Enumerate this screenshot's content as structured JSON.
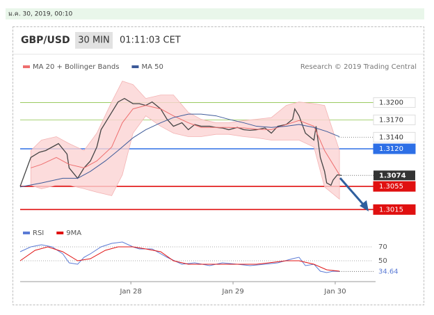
{
  "timestamp": "ม.ค. 30, 2019, 00:10",
  "chart_data": [
    {
      "type": "line",
      "title": "GBP/USD",
      "interval": "30 MIN",
      "time": "01:11:03 CET",
      "credit": "Research © 2019 Trading Central",
      "xlim": [
        -52,
        113
      ],
      "ylim": [
        1.2995,
        1.3245
      ],
      "xticks": [
        {
          "value": 0,
          "label": "Jan 28"
        },
        {
          "value": 48,
          "label": "Jan 29"
        },
        {
          "value": 96,
          "label": "Jan 30"
        }
      ],
      "series": [
        {
          "color": "#444444",
          "x": [
            -52,
            -47,
            -43,
            -40,
            -37,
            -34,
            -30,
            -29,
            -25,
            -22,
            -19,
            -16,
            -14,
            -12,
            -9,
            -6,
            -3,
            1,
            4,
            7,
            10,
            14,
            17,
            20,
            24,
            27,
            30,
            33,
            37,
            40,
            43,
            46,
            50,
            53,
            56,
            59,
            63,
            66,
            69,
            73,
            76,
            77,
            79,
            82,
            86,
            87,
            89,
            91,
            92,
            94,
            95,
            97,
            99
          ],
          "values": [
            1.3055,
            1.3105,
            1.3114,
            1.3117,
            1.3123,
            1.3129,
            1.3111,
            1.3087,
            1.3069,
            1.3087,
            1.3099,
            1.3123,
            1.3153,
            1.3165,
            1.3183,
            1.3201,
            1.3207,
            1.3198,
            1.3198,
            1.3195,
            1.3201,
            1.3189,
            1.3171,
            1.3159,
            1.3165,
            1.3153,
            1.3162,
            1.3159,
            1.3159,
            1.3157,
            1.3156,
            1.3153,
            1.3157,
            1.3153,
            1.3152,
            1.3153,
            1.3156,
            1.3147,
            1.3159,
            1.3162,
            1.3171,
            1.3189,
            1.3177,
            1.3147,
            1.3135,
            1.3159,
            1.3105,
            1.3081,
            1.3061,
            1.3057,
            1.3066,
            1.3075,
            1.3074
          ]
        },
        {
          "name": "MA 20 + Bollinger Bands",
          "color": "#ee6e6e",
          "band_color": "#fbd3d3",
          "x": [
            -47,
            -42,
            -35,
            -29,
            -22,
            -16,
            -9,
            -4,
            1,
            7,
            14,
            20,
            27,
            33,
            40,
            46,
            53,
            59,
            66,
            73,
            79,
            86,
            91,
            98
          ],
          "values": [
            1.3087,
            1.3093,
            1.3105,
            1.3093,
            1.3087,
            1.3099,
            1.3123,
            1.3165,
            1.3189,
            1.3195,
            1.3189,
            1.3177,
            1.3165,
            1.3157,
            1.3157,
            1.3157,
            1.3156,
            1.3154,
            1.3153,
            1.3162,
            1.3169,
            1.3159,
            1.3117,
            1.3075
          ],
          "upper": [
            1.3117,
            1.3135,
            1.3141,
            1.3129,
            1.3117,
            1.3147,
            1.3201,
            1.3237,
            1.3231,
            1.3207,
            1.3213,
            1.3213,
            1.3183,
            1.3171,
            1.3165,
            1.3165,
            1.3169,
            1.3171,
            1.3174,
            1.3195,
            1.3201,
            1.3198,
            1.3195,
            1.3117
          ],
          "lower": [
            1.3057,
            1.3051,
            1.3057,
            1.3057,
            1.3051,
            1.3045,
            1.3039,
            1.3075,
            1.3147,
            1.3177,
            1.3159,
            1.3147,
            1.3141,
            1.3141,
            1.3145,
            1.3145,
            1.3141,
            1.3139,
            1.3135,
            1.3135,
            1.3135,
            1.3123,
            1.3054,
            1.3033
          ]
        },
        {
          "name": "MA 50",
          "color": "#3d5a99",
          "x": [
            -52,
            -42,
            -32,
            -25,
            -19,
            -12,
            -6,
            1,
            7,
            14,
            20,
            27,
            33,
            40,
            46,
            53,
            59,
            66,
            73,
            79,
            86,
            92,
            98
          ],
          "values": [
            1.3054,
            1.3061,
            1.3069,
            1.3069,
            1.3081,
            1.3099,
            1.3117,
            1.3139,
            1.3153,
            1.3165,
            1.3174,
            1.318,
            1.318,
            1.3177,
            1.3171,
            1.3165,
            1.3159,
            1.3157,
            1.3159,
            1.3162,
            1.3157,
            1.315,
            1.3141
          ]
        }
      ],
      "levels": [
        {
          "value": 1.32,
          "label": "1.3200",
          "color": "#8bc34a",
          "style": "solid",
          "box": "plain"
        },
        {
          "value": 1.317,
          "label": "1.3170",
          "color": "#8bc34a",
          "style": "solid",
          "box": "plain"
        },
        {
          "value": 1.314,
          "label": "1.3140",
          "color": "#888888",
          "style": "dotted",
          "box": "plain"
        },
        {
          "value": 1.312,
          "label": "1.3120",
          "color": "#2d6fe6",
          "style": "solid",
          "box": "filled"
        },
        {
          "value": 1.3055,
          "label": "1.3055",
          "color": "#e01010",
          "style": "solid",
          "box": "filled"
        },
        {
          "value": 1.3015,
          "label": "1.3015",
          "color": "#e01010",
          "style": "solid",
          "box": "filled"
        }
      ]
    },
    {
      "type": "line",
      "xlim": [
        -52,
        113
      ],
      "ylim": [
        25,
        85
      ],
      "yticks": [
        70,
        50
      ],
      "series": [
        {
          "name": "RSI",
          "color": "#5b7bd5",
          "x": [
            -52,
            -47,
            -42,
            -37,
            -32,
            -29,
            -25,
            -22,
            -19,
            -14,
            -9,
            -4,
            1,
            4,
            10,
            17,
            24,
            30,
            37,
            43,
            50,
            56,
            63,
            69,
            76,
            79,
            82,
            86,
            89,
            92,
            95,
            98
          ],
          "values": [
            63,
            70,
            73,
            70,
            60,
            47,
            45,
            55,
            60,
            70,
            75,
            77,
            70,
            67,
            67,
            55,
            45,
            47,
            43,
            47,
            45,
            43,
            45,
            47,
            53,
            55,
            43,
            45,
            35,
            33,
            35,
            34.64
          ]
        },
        {
          "name": "9MA",
          "color": "#e01010",
          "x": [
            -52,
            -45,
            -39,
            -32,
            -25,
            -19,
            -12,
            -6,
            1,
            7,
            14,
            20,
            27,
            33,
            46,
            59,
            73,
            79,
            86,
            92,
            98
          ],
          "values": [
            50,
            65,
            70,
            63,
            50,
            53,
            65,
            70,
            70,
            67,
            63,
            50,
            45,
            45,
            45,
            45,
            50,
            50,
            45,
            37,
            35
          ]
        }
      ]
    }
  ]
}
